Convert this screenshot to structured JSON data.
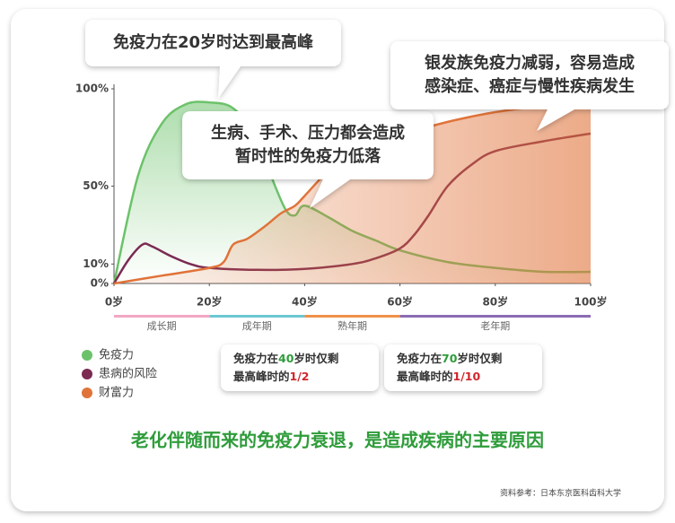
{
  "chart_data": {
    "type": "line",
    "xlim": [
      0,
      100
    ],
    "xticks": [
      {
        "value": 0,
        "label": "0岁"
      },
      {
        "value": 20,
        "label": "20岁"
      },
      {
        "value": 40,
        "label": "40岁"
      },
      {
        "value": 60,
        "label": "60岁"
      },
      {
        "value": 80,
        "label": "80岁"
      },
      {
        "value": 100,
        "label": "100岁"
      }
    ],
    "ylim": [
      0,
      100
    ],
    "yticks": [
      {
        "value": 0,
        "label": "0%"
      },
      {
        "value": 10,
        "label": "10%"
      },
      {
        "value": 50,
        "label": "50%"
      },
      {
        "value": 100,
        "label": "100%"
      }
    ],
    "grid": false,
    "series": [
      {
        "name": "免疫力",
        "color": "#6cc26a",
        "x": [
          0,
          5,
          10,
          15,
          20,
          25,
          30,
          33,
          36,
          38,
          40,
          45,
          50,
          55,
          60,
          70,
          80,
          90,
          100
        ],
        "values": [
          0,
          55,
          82,
          92,
          93,
          90,
          75,
          55,
          38,
          35,
          40,
          34,
          27,
          22,
          17,
          11,
          8,
          6,
          6
        ]
      },
      {
        "name": "患病的风险",
        "color": "#7b2a52",
        "x": [
          0,
          3,
          6,
          8,
          12,
          16,
          20,
          30,
          40,
          50,
          55,
          60,
          63,
          66,
          70,
          75,
          80,
          90,
          100
        ],
        "values": [
          0,
          12,
          20,
          19,
          14,
          10,
          8,
          7,
          7.5,
          10,
          13,
          18,
          25,
          35,
          50,
          61,
          68,
          73,
          77
        ]
      },
      {
        "name": "财富力",
        "color": "#e0733a",
        "x": [
          0,
          10,
          20,
          23,
          25,
          28,
          32,
          35,
          38,
          40,
          45,
          50,
          60,
          70,
          80,
          90,
          100
        ],
        "values": [
          0,
          4,
          8,
          11,
          20,
          23,
          30,
          36,
          40,
          45,
          58,
          67,
          76,
          83,
          88,
          91,
          92
        ]
      }
    ],
    "stages": [
      {
        "label": "成长期",
        "from": 0,
        "to": 20,
        "color": "#f2a7c3"
      },
      {
        "label": "成年期",
        "from": 20,
        "to": 40,
        "color": "#6cc8d4"
      },
      {
        "label": "熟年期",
        "from": 40,
        "to": 60,
        "color": "#f0904a"
      },
      {
        "label": "老年期",
        "from": 60,
        "to": 100,
        "color": "#8a6bb4"
      }
    ],
    "annotations": [
      {
        "lines": [
          "免疫力在20岁时达到最高峰"
        ]
      },
      {
        "lines": [
          "生病、手术、压力都会造成",
          "暂时性的免疫力低落"
        ]
      },
      {
        "lines": [
          "银发族免疫力减弱，容易造成",
          "感染症、癌症与慢性疾病发生"
        ]
      }
    ],
    "notes": [
      {
        "lines": [
          [
            "免疫力在",
            "40",
            "岁时仅剩"
          ],
          [
            "最高峰时的",
            "1/2"
          ]
        ]
      },
      {
        "lines": [
          [
            "免疫力在",
            "70",
            "岁时仅剩"
          ],
          [
            "最高峰时的",
            "1/10"
          ]
        ]
      }
    ],
    "caption": "老化伴随而来的免疫力衰退，是造成疾病的主要原因",
    "source": "资料参考：日本东京医科齿科大学"
  }
}
